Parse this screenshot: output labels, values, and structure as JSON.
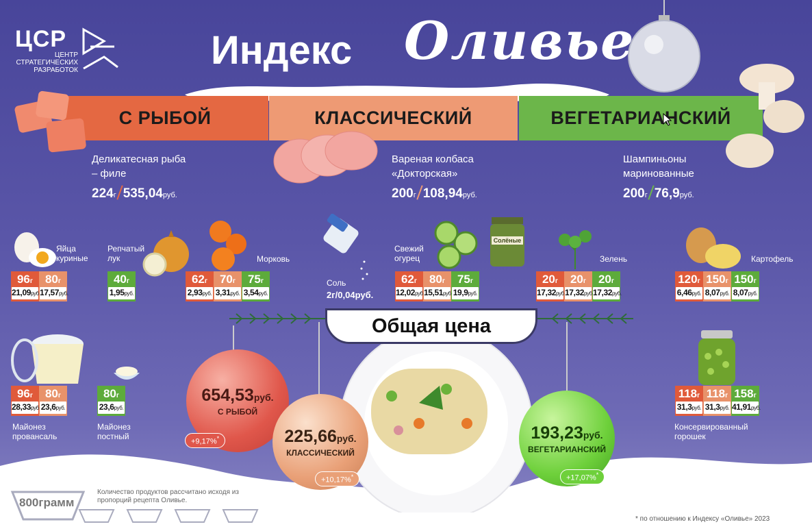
{
  "logo": {
    "abbr": "ЦСР",
    "sub": "ЦЕНТР СТРАТЕГИЧЕСКИХ РАЗРАБОТОК"
  },
  "title": {
    "part1": "Индекс",
    "part2": "Оливье"
  },
  "variants": [
    {
      "label": "С РЫБОЙ",
      "color": "#e46842",
      "product": "Деликатесная рыба – филе",
      "grams": "224",
      "g_unit": "г",
      "price": "535,04",
      "p_unit": "руб."
    },
    {
      "label": "КЛАССИЧЕСКИЙ",
      "color": "#ee9a74",
      "product": "Вареная колбаса «Докторская»",
      "grams": "200",
      "g_unit": "г",
      "price": "108,94",
      "p_unit": "руб."
    },
    {
      "label": "ВЕГЕТАРИАНСКИЙ",
      "color": "#6cb64a",
      "product": "Шампиньоны маринованные",
      "grams": "200",
      "g_unit": "г",
      "price": "76,9",
      "p_unit": "руб."
    }
  ],
  "ingredients": {
    "eggs": {
      "label": "Яйца куриные",
      "cells": [
        {
          "g": "96",
          "p": "21,09"
        },
        {
          "g": "80",
          "p": "17,57"
        }
      ]
    },
    "onion": {
      "label": "Репчатый лук",
      "cells": [
        {
          "g": "40",
          "p": "1,95"
        }
      ]
    },
    "carrot": {
      "label": "Морковь",
      "cells": [
        {
          "g": "62",
          "p": "2,93"
        },
        {
          "g": "70",
          "p": "3,31"
        },
        {
          "g": "75",
          "p": "3,54"
        }
      ]
    },
    "salt": {
      "label": "Соль",
      "grams": "2г",
      "price": "0,04руб."
    },
    "cucumber": {
      "label": "Свежий огурец",
      "cells": [
        {
          "g": "62",
          "p": "12,02"
        },
        {
          "g": "80",
          "p": "15,51"
        },
        {
          "g": "75",
          "p": "19,9"
        }
      ]
    },
    "pickles_jar": "Солёные",
    "greens": {
      "label": "Зелень",
      "cells": [
        {
          "g": "20",
          "p": "17,32"
        },
        {
          "g": "20",
          "p": "17,32"
        },
        {
          "g": "20",
          "p": "17,32"
        }
      ]
    },
    "potato": {
      "label": "Картофель",
      "cells": [
        {
          "g": "120",
          "p": "6,46"
        },
        {
          "g": "150",
          "p": "8,07"
        },
        {
          "g": "150",
          "p": "8,07"
        }
      ]
    },
    "mayo": {
      "label": "Майонез провансаль",
      "cells": [
        {
          "g": "96",
          "p": "28,33"
        },
        {
          "g": "80",
          "p": "23,6"
        }
      ]
    },
    "mayo_lean": {
      "label": "Майонез постный",
      "cells": [
        {
          "g": "80",
          "p": "23,6"
        }
      ]
    },
    "peas": {
      "label": "Консервированный горошек",
      "cells": [
        {
          "g": "118",
          "p": "31,3"
        },
        {
          "g": "118",
          "p": "31,3"
        },
        {
          "g": "158",
          "p": "41,91"
        }
      ]
    }
  },
  "units": {
    "g": "г",
    "rub": "руб."
  },
  "total": {
    "title": "Общая цена"
  },
  "balls": [
    {
      "value": "654,53",
      "unit": "руб.",
      "label": "С РЫБОЙ",
      "change": "+9,17%",
      "star": "*",
      "color": "#e0574b"
    },
    {
      "value": "225,66",
      "unit": "руб.",
      "label": "КЛАССИЧЕСКИЙ",
      "change": "+10,17%",
      "star": "*",
      "color": "#e9a077"
    },
    {
      "value": "193,23",
      "unit": "руб.",
      "label": "ВЕГЕТАРИАНСКИЙ",
      "change": "+17,07%",
      "star": "*",
      "color": "#6ed03b"
    }
  ],
  "bowl": {
    "label": "800грамм"
  },
  "note": "Количество продуктов рассчитано исходя из пропорций рецепта Оливье.",
  "footnote": "* по отношению к Индексу «Оливье» 2023"
}
